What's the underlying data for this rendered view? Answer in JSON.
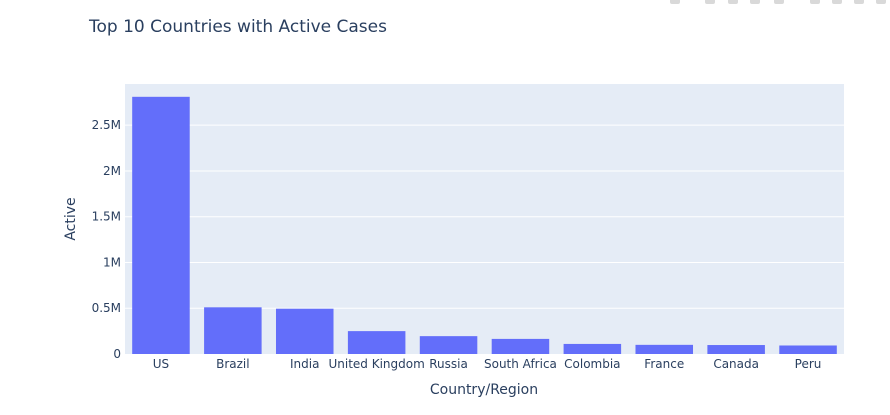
{
  "icons": [
    "camera-icon",
    "zoom-icon",
    "pan-icon",
    "box-select-icon",
    "lasso-icon",
    "zoom-in-icon",
    "zoom-out-icon",
    "autoscale-icon",
    "reset-axes-icon"
  ],
  "chart_data": {
    "type": "bar",
    "title": "Top 10 Countries with Active Cases",
    "xlabel": "Country/Region",
    "ylabel": "Active",
    "categories": [
      "US",
      "Brazil",
      "India",
      "United Kingdom",
      "Russia",
      "South Africa",
      "Colombia",
      "France",
      "Canada",
      "Peru"
    ],
    "values": [
      2810000,
      510000,
      495000,
      250000,
      195000,
      165000,
      110000,
      100000,
      98000,
      93000
    ],
    "ylim": [
      0,
      2950000
    ],
    "yticks": [
      0,
      500000,
      1000000,
      1500000,
      2000000,
      2500000
    ],
    "ytick_labels": [
      "0",
      "0.5M",
      "1M",
      "1.5M",
      "2M",
      "2.5M"
    ],
    "bar_color": "#636efa",
    "plot_bg": "#e5ecf6",
    "grid": true
  }
}
